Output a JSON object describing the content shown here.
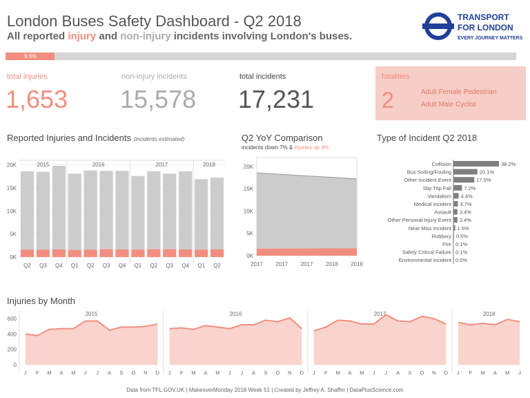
{
  "header": {
    "title": "London Buses Safety Dashboard - Q2 2018",
    "subtitle_prefix": "All reported ",
    "subtitle_injury": "injury",
    "subtitle_and": " and ",
    "subtitle_noninjury": "non-injury",
    "subtitle_suffix": " incidents involving London's buses."
  },
  "logo": {
    "line1": "TRANSPORT",
    "line2": "FOR LONDON",
    "tagline": "EVERY JOURNEY MATTERS"
  },
  "progress": {
    "label": "9.6%",
    "fraction": 0.096
  },
  "kpis": {
    "injuries": {
      "label": "total injuries",
      "value": "1,653"
    },
    "noninjury": {
      "label": "non-injury incidents",
      "value": "15,578"
    },
    "total": {
      "label": "total incidents",
      "value": "17,231"
    },
    "fatalities": {
      "label": "fatalities",
      "value": "2",
      "details": [
        "Adult Female Pedestrian",
        "Adult Male Cyclist"
      ]
    }
  },
  "sections": {
    "quarterly_title": "Reported Injuries and Incidents",
    "quarterly_note": "(incidents estimated)",
    "yoy_title": "Q2 YoY Comparison",
    "yoy_sub_prefix": "incidents down 7% & ",
    "yoy_sub_injury": "injuries up 4%",
    "type_title": "Type of Incident Q2 2018",
    "monthly_title": "Injuries by Month"
  },
  "colors": {
    "injury": "#f28e7f",
    "noninjury": "#cccccc",
    "bar": "#7f7f7f",
    "area": "#f9d3cd",
    "fatality_bg": "#f7cdc7"
  },
  "footer": "Data from TFL.GOV.UK  |  MakeoverMonday 2018 Week 51  |  Created by Jeffrey A. Shaffer  |  DataPlusScience.com",
  "chart_data": [
    {
      "id": "quarterly",
      "type": "bar",
      "title": "Reported Injuries and Incidents",
      "years": [
        {
          "label": "2015",
          "count": 3
        },
        {
          "label": "2016",
          "count": 4
        },
        {
          "label": "2017",
          "count": 4
        },
        {
          "label": "2018",
          "count": 2
        }
      ],
      "categories": [
        "Q2",
        "Q3",
        "Q4",
        "Q1",
        "Q2",
        "Q3",
        "Q4",
        "Q1",
        "Q2",
        "Q3",
        "Q4",
        "Q1",
        "Q2"
      ],
      "series": [
        {
          "name": "injuries",
          "values": [
            1600,
            1600,
            1650,
            1550,
            1600,
            1700,
            1650,
            1600,
            1700,
            1700,
            1650,
            1600,
            1653
          ]
        },
        {
          "name": "total incidents",
          "values": [
            18600,
            18500,
            19800,
            18100,
            18800,
            18700,
            18700,
            17600,
            18600,
            18100,
            18600,
            16900,
            17231
          ]
        }
      ],
      "yticks": [
        "0K",
        "5K",
        "10K",
        "15K",
        "20K"
      ],
      "ylim": [
        0,
        21000
      ]
    },
    {
      "id": "yoy",
      "type": "area",
      "title": "Q2 YoY Comparison",
      "xticks": [
        "2017",
        "2017",
        "2017",
        "2018",
        "2018"
      ],
      "series": [
        {
          "name": "injuries",
          "values": [
            1590,
            1653
          ]
        },
        {
          "name": "total incidents",
          "values": [
            18550,
            17231
          ]
        }
      ],
      "yticks": [
        "0K",
        "5K",
        "10K",
        "15K",
        "20K"
      ],
      "ylim": [
        0,
        22000
      ]
    },
    {
      "id": "types",
      "type": "bar",
      "title": "Type of Incident Q2 2018",
      "categories": [
        "Collision",
        "Bus Soiling/Fouling",
        "Other Incident Event",
        "Slip Trip Fall",
        "Vandalism",
        "Medical Incident",
        "Assault",
        "Other Personal Injury Event",
        "Near Miss Incident",
        "Robbery",
        "Fire",
        "Safety Critical Failure",
        "Environmental Incident"
      ],
      "values": [
        38.2,
        20.1,
        17.5,
        7.2,
        4.4,
        3.7,
        3.4,
        3.4,
        1.5,
        0.5,
        0.1,
        0.1,
        0.0
      ],
      "labels": [
        "38.2%",
        "20.1%",
        "17.5%",
        "7.2%",
        "4.4%",
        "3.7%",
        "3.4%",
        "3.4%",
        "1.5%",
        "0.5%",
        "0.1%",
        "0.1%",
        "0.0%"
      ]
    },
    {
      "id": "monthly",
      "type": "area",
      "title": "Injuries by Month",
      "years": [
        {
          "label": "2015",
          "months": [
            "J",
            "F",
            "M",
            "A",
            "M",
            "J",
            "J",
            "A",
            "S",
            "O",
            "N",
            "D"
          ],
          "values": [
            400,
            380,
            460,
            470,
            470,
            570,
            570,
            450,
            490,
            490,
            500,
            530
          ]
        },
        {
          "label": "2016",
          "months": [
            "J",
            "F",
            "M",
            "A",
            "M",
            "J",
            "J",
            "A",
            "S",
            "O",
            "N",
            "D"
          ],
          "values": [
            470,
            480,
            460,
            510,
            490,
            470,
            520,
            520,
            580,
            560,
            610,
            470
          ]
        },
        {
          "label": "2017",
          "months": [
            "J",
            "F",
            "M",
            "A",
            "M",
            "J",
            "J",
            "A",
            "S",
            "O",
            "N",
            "D"
          ],
          "values": [
            440,
            490,
            580,
            570,
            530,
            530,
            650,
            570,
            560,
            630,
            600,
            530
          ]
        },
        {
          "label": "2018",
          "months": [
            "J",
            "F",
            "M",
            "A",
            "M",
            "J"
          ],
          "values": [
            550,
            520,
            540,
            520,
            590,
            560
          ]
        }
      ],
      "yticks": [
        "0",
        "200",
        "400",
        "600"
      ],
      "ylim": [
        0,
        700
      ]
    }
  ]
}
